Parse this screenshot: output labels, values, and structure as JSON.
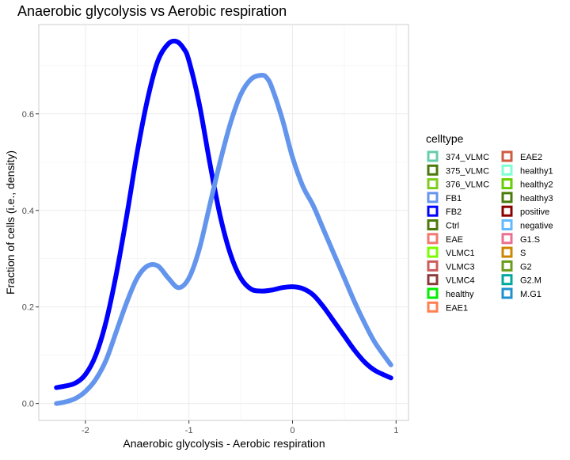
{
  "chart_data": {
    "type": "line",
    "title": "Anaerobic glycolysis vs Aerobic respiration",
    "xlabel": "Anaerobic glycolysis - Aerobic respiration",
    "ylabel": "Fraction of cells (i.e., density)",
    "xlim": [
      -2.45,
      1.12
    ],
    "ylim": [
      -0.035,
      0.785
    ],
    "x_ticks": [
      -2,
      -1,
      0,
      1
    ],
    "y_ticks": [
      0.0,
      0.2,
      0.4,
      0.6
    ],
    "x_tick_labels": [
      "-2",
      "-1",
      "0",
      "1"
    ],
    "y_tick_labels": [
      "0.0",
      "0.2",
      "0.4",
      "0.6"
    ],
    "grid": true,
    "legend_position": "right",
    "legend": {
      "title": "celltype",
      "items": [
        {
          "label": "374_VLMC",
          "color": "#66CDAA"
        },
        {
          "label": "375_VLMC",
          "color": "#4A7A0A"
        },
        {
          "label": "376_VLMC",
          "color": "#7CCD1A"
        },
        {
          "label": "FB1",
          "color": "#6495ED"
        },
        {
          "label": "FB2",
          "color": "#0000FF"
        },
        {
          "label": "Ctrl",
          "color": "#4A7A0A"
        },
        {
          "label": "EAE",
          "color": "#F07870"
        },
        {
          "label": "VLMC1",
          "color": "#7CFC00"
        },
        {
          "label": "VLMC3",
          "color": "#CD5C5C"
        },
        {
          "label": "VLMC4",
          "color": "#8B3A3A"
        },
        {
          "label": "healthy",
          "color": "#00EE00"
        },
        {
          "label": "EAE1",
          "color": "#FF7F50"
        },
        {
          "label": "EAE2",
          "color": "#CD5C40"
        },
        {
          "label": "healthy1",
          "color": "#7FFFD4"
        },
        {
          "label": "healthy2",
          "color": "#66CD00"
        },
        {
          "label": "healthy3",
          "color": "#4A7A0A"
        },
        {
          "label": "positive",
          "color": "#8B0000"
        },
        {
          "label": "negative",
          "color": "#63B8FF"
        },
        {
          "label": "G1.S",
          "color": "#E9708F"
        },
        {
          "label": "S",
          "color": "#CD8500"
        },
        {
          "label": "G2",
          "color": "#6B9B1A"
        },
        {
          "label": "G2.M",
          "color": "#00A99D"
        },
        {
          "label": "M.G1",
          "color": "#1E90CF"
        }
      ]
    },
    "series": [
      {
        "color": "#0000FF",
        "x": [
          -2.28,
          -2.2,
          -2.1,
          -2.0,
          -1.9,
          -1.8,
          -1.7,
          -1.6,
          -1.5,
          -1.4,
          -1.3,
          -1.2,
          -1.12,
          -1.05,
          -1.0,
          -0.9,
          -0.8,
          -0.7,
          -0.6,
          -0.5,
          -0.4,
          -0.3,
          -0.2,
          -0.1,
          0.0,
          0.1,
          0.2,
          0.3,
          0.4,
          0.5,
          0.6,
          0.7,
          0.8,
          0.95
        ],
        "y": [
          0.033,
          0.036,
          0.042,
          0.06,
          0.1,
          0.17,
          0.27,
          0.39,
          0.52,
          0.63,
          0.71,
          0.745,
          0.75,
          0.735,
          0.71,
          0.62,
          0.5,
          0.39,
          0.31,
          0.26,
          0.237,
          0.233,
          0.235,
          0.24,
          0.242,
          0.238,
          0.225,
          0.2,
          0.17,
          0.14,
          0.11,
          0.085,
          0.068,
          0.053
        ]
      },
      {
        "color": "#6495ED",
        "x": [
          -2.28,
          -2.2,
          -2.1,
          -2.0,
          -1.9,
          -1.8,
          -1.7,
          -1.6,
          -1.5,
          -1.4,
          -1.3,
          -1.2,
          -1.1,
          -1.0,
          -0.9,
          -0.8,
          -0.7,
          -0.6,
          -0.5,
          -0.4,
          -0.3,
          -0.25,
          -0.2,
          -0.1,
          0.0,
          0.1,
          0.2,
          0.3,
          0.4,
          0.5,
          0.6,
          0.7,
          0.8,
          0.95
        ],
        "y": [
          0.0,
          0.003,
          0.01,
          0.025,
          0.05,
          0.09,
          0.15,
          0.21,
          0.26,
          0.285,
          0.285,
          0.26,
          0.24,
          0.26,
          0.32,
          0.41,
          0.5,
          0.58,
          0.64,
          0.672,
          0.68,
          0.675,
          0.655,
          0.59,
          0.51,
          0.45,
          0.41,
          0.36,
          0.31,
          0.26,
          0.21,
          0.165,
          0.125,
          0.08
        ]
      }
    ]
  }
}
